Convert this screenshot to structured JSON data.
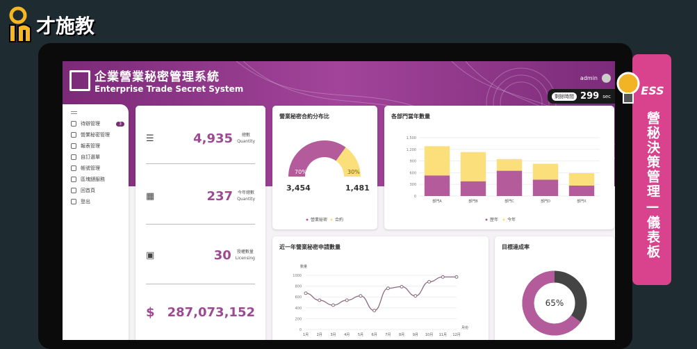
{
  "logo": {
    "text": "才施教"
  },
  "header": {
    "title_zh": "企業營業秘密管理系統",
    "title_en": "Enterprise Trade Secret System",
    "user": "admin",
    "timer_label": "剩餘時間",
    "timer_value": "299",
    "timer_unit": "sec"
  },
  "sidebar": {
    "items": [
      {
        "label": "待辦管理",
        "icon": "inbox-icon",
        "badge": "3"
      },
      {
        "label": "營業秘密管理",
        "icon": "lock-icon"
      },
      {
        "label": "報表管理",
        "icon": "clipboard-icon"
      },
      {
        "label": "自訂選單",
        "icon": "menu-icon"
      },
      {
        "label": "帳號管理",
        "icon": "gear-icon"
      },
      {
        "label": "區塊鏈服務",
        "icon": "blockchain-icon"
      },
      {
        "label": "回首頁",
        "icon": "home-icon"
      },
      {
        "label": "登出",
        "icon": "logout-icon"
      }
    ]
  },
  "stats": [
    {
      "value": "4,935",
      "label_zh": "總數",
      "label_en": "Quantity",
      "icon": "stack-icon"
    },
    {
      "value": "237",
      "label_zh": "今年總數",
      "label_en": "Quantity",
      "icon": "calendar-icon"
    },
    {
      "value": "30",
      "label_zh": "授權數量",
      "label_en": "Licensing",
      "icon": "certificate-icon"
    },
    {
      "value": "287,073,152",
      "icon": "dollar-icon",
      "symbol": "$"
    }
  ],
  "colors": {
    "purple": "#b45c9b",
    "yellow": "#fbdf7a",
    "dark": "#444444",
    "accent": "#9c4a91",
    "banner": "#d9438e"
  },
  "chart_data": [
    {
      "type": "pie",
      "title": "營業秘密合約分布比",
      "categories": [
        "營業秘密",
        "合約"
      ],
      "values": [
        3454,
        1481
      ],
      "percent_labels": [
        "70%",
        "30%"
      ],
      "value_labels": [
        "3,454",
        "1,481"
      ],
      "legend": "bottom"
    },
    {
      "type": "bar",
      "stacked": true,
      "title": "各部門當年數量",
      "categories": [
        "部門A",
        "部門B",
        "部門C",
        "部門D",
        "部門X"
      ],
      "series": [
        {
          "name": "歷年",
          "values": [
            530,
            380,
            650,
            420,
            270
          ]
        },
        {
          "name": "今年",
          "values": [
            750,
            750,
            300,
            410,
            320
          ]
        }
      ],
      "ylim": [
        0,
        1500
      ],
      "yticks": [
        "0",
        "300",
        "600",
        "900",
        "1,200",
        "1,500"
      ],
      "grid": true,
      "legend": "bottom"
    },
    {
      "type": "line",
      "title": "近一年營業秘密申請數量",
      "ylabel": "數量",
      "xlabel": "月份",
      "categories": [
        "1月",
        "2月",
        "3月",
        "4月",
        "5月",
        "6月",
        "7月",
        "8月",
        "9月",
        "10月",
        "11月",
        "12月"
      ],
      "values": [
        670,
        540,
        450,
        540,
        620,
        350,
        760,
        790,
        620,
        880,
        970,
        970
      ],
      "ylim": [
        0,
        1000
      ],
      "yticks": [
        "0",
        "200",
        "400",
        "600",
        "800",
        "1000"
      ],
      "grid": true
    },
    {
      "type": "pie",
      "title": "目標達成率",
      "values": [
        65,
        35
      ],
      "center_label": "65%"
    }
  ],
  "banner": {
    "tag": "ESS",
    "text": "營秘決策管理—儀表板"
  }
}
